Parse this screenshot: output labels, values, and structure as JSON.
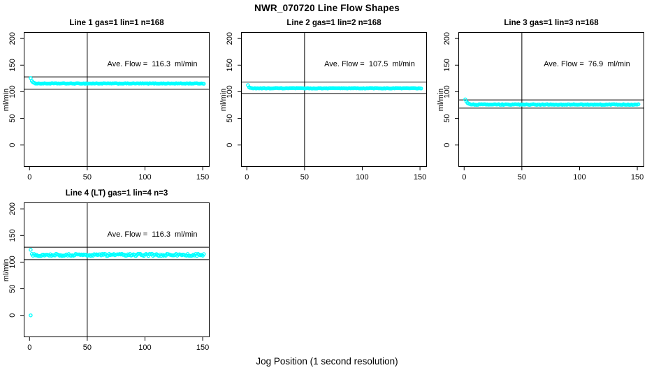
{
  "main_title": "NWR_070720  Line Flow Shapes",
  "chart_data": {
    "type": "scatter",
    "title": "NWR_070720  Line Flow Shapes",
    "xlabel": "Jog Position (1 second resolution)",
    "ylabel": "ml/min",
    "x_ticks": [
      0,
      50,
      100,
      150
    ],
    "y_ticks": [
      0,
      50,
      100,
      150,
      200
    ],
    "xlim": [
      -5,
      156
    ],
    "ylim": [
      -41,
      212
    ],
    "grid": false,
    "legend": "none",
    "point_color": "#00ffff",
    "line_color": "#000000",
    "vline_x": 50,
    "panels": [
      {
        "title": "Line 1 gas=1 lin=1 n=168",
        "n": 168,
        "ave_flow": 116.3,
        "ave_text": "Ave. Flow =  116.3  ml/min",
        "hline_hi": 127.9,
        "hline_lo": 104.7,
        "x_start": 1,
        "x_end": 151,
        "start_y": 126,
        "steady_y": 115.5,
        "tau": 1.2,
        "noise": 0.5,
        "extra_points": []
      },
      {
        "title": "Line 2 gas=1 lin=2 n=168",
        "n": 168,
        "ave_flow": 107.5,
        "ave_text": "Ave. Flow =  107.5  ml/min",
        "hline_hi": 118.3,
        "hline_lo": 96.8,
        "x_start": 1,
        "x_end": 151,
        "start_y": 112,
        "steady_y": 106.5,
        "tau": 1.0,
        "noise": 0.5,
        "extra_points": []
      },
      {
        "title": "Line 3 gas=1 lin=3 n=168",
        "n": 168,
        "ave_flow": 76.9,
        "ave_text": "Ave. Flow =  76.9  ml/min",
        "hline_hi": 84.6,
        "hline_lo": 69.2,
        "x_start": 1,
        "x_end": 151,
        "start_y": 86,
        "steady_y": 76,
        "tau": 1.5,
        "noise": 0.6,
        "extra_points": []
      },
      {
        "title": "Line 4 (LT) gas=1 lin=4 n=3",
        "n": 3,
        "ave_flow": 116.3,
        "ave_text": "Ave. Flow =  116.3  ml/min",
        "hline_hi": 127.9,
        "hline_lo": 104.7,
        "x_start": 1,
        "x_end": 151,
        "start_y": 121,
        "steady_y": 113.5,
        "tau": 0.8,
        "noise": 2.2,
        "extra_points": [
          [
            1,
            0
          ]
        ]
      }
    ]
  }
}
